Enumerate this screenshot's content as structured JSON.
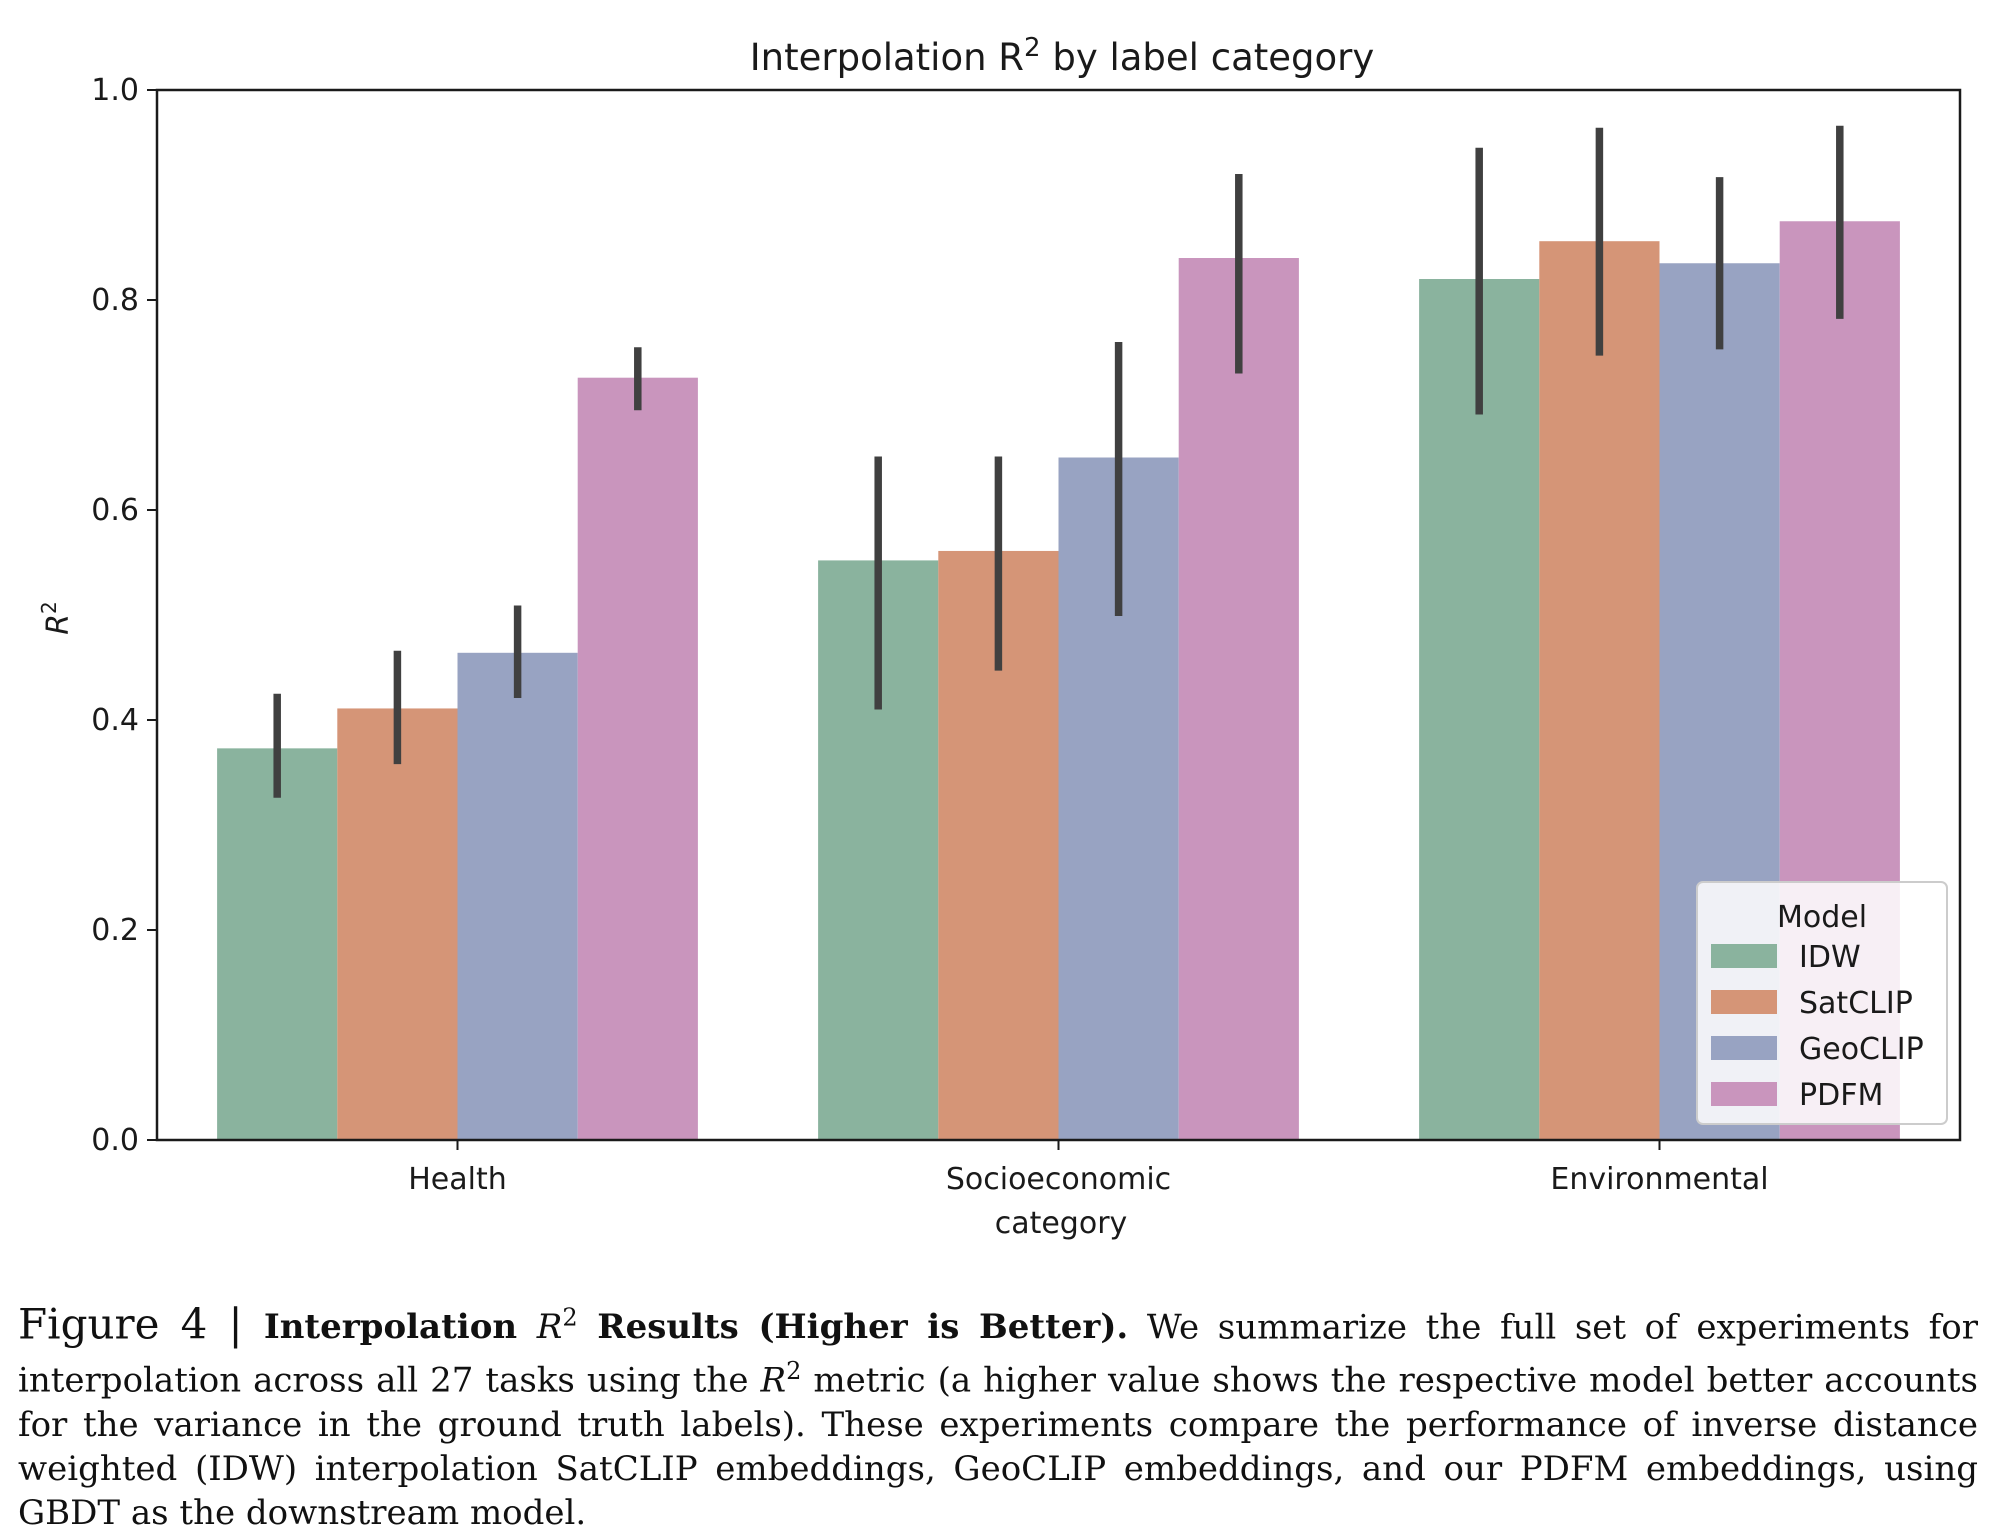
{
  "chart_data": {
    "type": "bar",
    "title_prefix": "Interpolation R",
    "title_sup": "2",
    "title_suffix": " by label category",
    "xlabel": "category",
    "ylabel": "R",
    "ylabel_sup": "2",
    "ylim": [
      0.0,
      1.0
    ],
    "yticks": [
      "0.0",
      "0.2",
      "0.4",
      "0.6",
      "0.8",
      "1.0"
    ],
    "ytick_values": [
      0.0,
      0.2,
      0.4,
      0.6,
      0.8,
      1.0
    ],
    "grid": false,
    "categories": [
      "Health",
      "Socioeconomic",
      "Environmental"
    ],
    "legend": {
      "title": "Model",
      "placement": "lower-right"
    },
    "series": [
      {
        "name": "IDW",
        "color": "#8ab39e",
        "values": [
          0.373,
          0.552,
          0.82
        ],
        "err_low": [
          0.326,
          0.41,
          0.691
        ],
        "err_high": [
          0.425,
          0.651,
          0.945
        ]
      },
      {
        "name": "SatCLIP",
        "color": "#d59577",
        "values": [
          0.411,
          0.561,
          0.856
        ],
        "err_low": [
          0.358,
          0.447,
          0.747
        ],
        "err_high": [
          0.466,
          0.651,
          0.964
        ]
      },
      {
        "name": "GeoCLIP",
        "color": "#98a3c2",
        "values": [
          0.464,
          0.65,
          0.835
        ],
        "err_low": [
          0.421,
          0.499,
          0.753
        ],
        "err_high": [
          0.509,
          0.76,
          0.917
        ]
      },
      {
        "name": "PDFM",
        "color": "#c995bd",
        "values": [
          0.726,
          0.84,
          0.875
        ],
        "err_low": [
          0.695,
          0.73,
          0.782
        ],
        "err_high": [
          0.755,
          0.92,
          0.966
        ]
      }
    ]
  },
  "caption": {
    "figure_number": "Figure 4 | ",
    "bold_prefix": "Interpolation ",
    "bold_r": "R",
    "bold_sup": "2",
    "bold_suffix": " Results (Higher is Better).",
    "text_a": " We summarize the full set of experiments for interpolation across all 27 tasks using the ",
    "text_r": "R",
    "text_sup": "2",
    "text_b": " metric (a higher value shows the respective model better accounts for the variance in the ground truth labels). These experiments compare the performance of inverse distance weighted (IDW) interpolation SatCLIP embeddings, GeoCLIP embeddings, and our PDFM embeddings, using GBDT as the downstream model."
  }
}
